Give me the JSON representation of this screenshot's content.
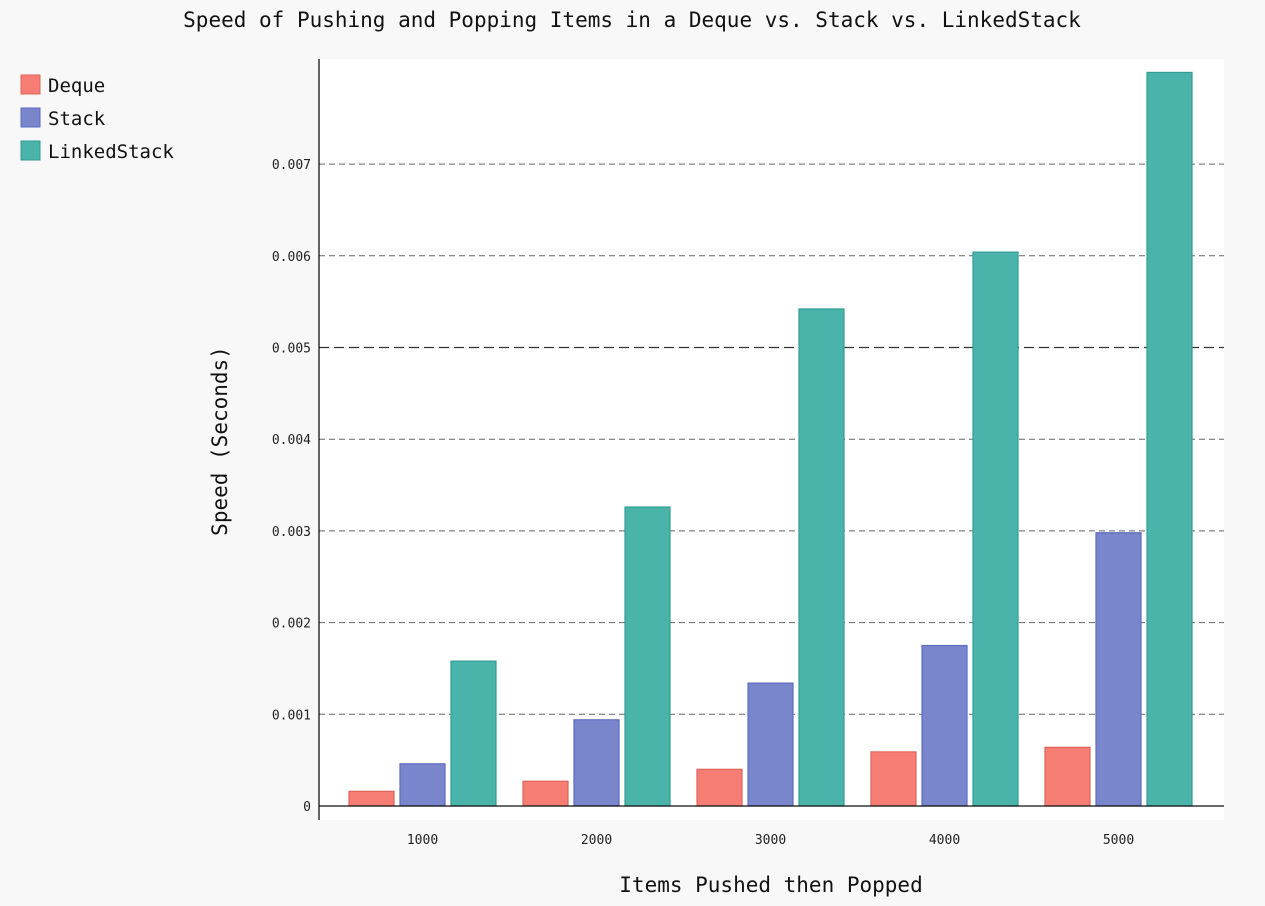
{
  "colors": {
    "deque_fill": "#f67d73",
    "deque_stroke": "#e0635a",
    "stack_fill": "#7986cb",
    "stack_stroke": "#5c6bc0",
    "linked_fill": "#4ab3aa",
    "linked_stroke": "#2f9d93",
    "plot_bg": "#ffffff",
    "page_bg": "#f8f8f8"
  },
  "chart_data": {
    "type": "bar",
    "title": "Speed of Pushing and Popping Items in a Deque vs. Stack vs. LinkedStack",
    "xlabel": "Items Pushed then Popped",
    "ylabel": "Speed (Seconds)",
    "categories": [
      "1000",
      "2000",
      "3000",
      "4000",
      "5000"
    ],
    "series": [
      {
        "name": "Deque",
        "values": [
          0.00016,
          0.00027,
          0.0004,
          0.00059,
          0.00064
        ]
      },
      {
        "name": "Stack",
        "values": [
          0.00046,
          0.00094,
          0.00134,
          0.00175,
          0.00298
        ]
      },
      {
        "name": "LinkedStack",
        "values": [
          0.00158,
          0.00326,
          0.00542,
          0.00604,
          0.008
        ]
      }
    ],
    "yticks": [
      0,
      0.001,
      0.002,
      0.003,
      0.004,
      0.005,
      0.006,
      0.007
    ],
    "ytick_labels": [
      "0",
      "0.001",
      "0.002",
      "0.003",
      "0.004",
      "0.005",
      "0.006",
      "0.007"
    ],
    "major_gridline": 0.005,
    "ylim": [
      0,
      0.00815
    ],
    "grid": true,
    "legend": "top-left"
  }
}
